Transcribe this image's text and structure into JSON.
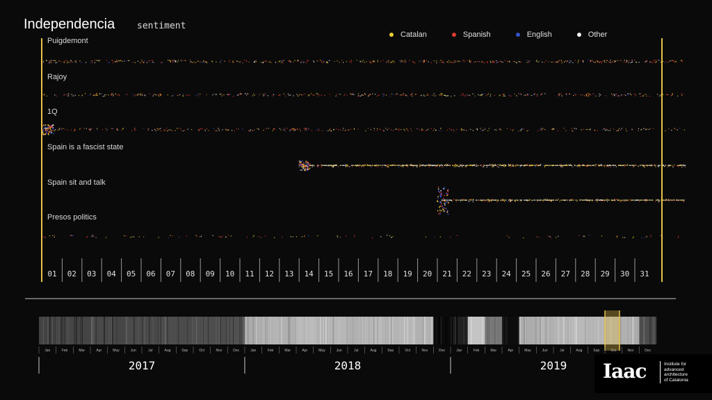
{
  "title": "Independencia",
  "subtitle": "sentiment",
  "colors": {
    "Catalan": "#e9cd36",
    "Spanish": "#e03a32",
    "English": "#3552c8",
    "Other": "#f2f2f2",
    "accent": "#e9c34a"
  },
  "chart_data": {
    "type": "scatter",
    "legend": [
      {
        "name": "Catalan",
        "color": "#e9cd36"
      },
      {
        "name": "Spanish",
        "color": "#e03a32"
      },
      {
        "name": "English",
        "color": "#3552c8"
      },
      {
        "name": "Other",
        "color": "#f2f2f2"
      }
    ],
    "rows": [
      {
        "label": "Puigdemont",
        "start_day": 1,
        "density": 0.55,
        "spikes": []
      },
      {
        "label": "Rajoy",
        "start_day": 1,
        "density": 0.45,
        "spikes": []
      },
      {
        "label": "1Q",
        "start_day": 1,
        "density": 0.4,
        "spikes": [
          1
        ]
      },
      {
        "label": "Spain is a fascist state",
        "start_day": 14,
        "density": 0.7,
        "spikes": [
          14
        ]
      },
      {
        "label": "Spain sit and talk",
        "start_day": 21,
        "density": 0.45,
        "spikes": [
          21
        ]
      },
      {
        "label": "Presos politics",
        "start_day": 1,
        "density": 0.12,
        "spikes": []
      }
    ],
    "days": [
      "01",
      "02",
      "03",
      "04",
      "05",
      "06",
      "07",
      "08",
      "09",
      "10",
      "11",
      "12",
      "13",
      "14",
      "15",
      "16",
      "17",
      "18",
      "19",
      "20",
      "21",
      "22",
      "23",
      "24",
      "25",
      "26",
      "27",
      "28",
      "29",
      "30",
      "31"
    ],
    "timeline": {
      "years": [
        "2017",
        "2018",
        "2019"
      ],
      "months": [
        "Jan",
        "Feb",
        "Mar",
        "Apr",
        "May",
        "Jun",
        "Jul",
        "Aug",
        "Sep",
        "Oct",
        "Nov",
        "Dec"
      ],
      "highlight_year": "2019",
      "highlight_month": "Oct",
      "brightness": [
        0.3,
        0.32,
        0.31,
        0.33,
        0.32,
        0.34,
        0.33,
        0.35,
        0.34,
        0.36,
        0.35,
        0.37,
        0.78,
        0.82,
        0.8,
        0.84,
        0.81,
        0.83,
        0.8,
        0.85,
        0.82,
        0.83,
        0.8,
        0.05,
        0.15,
        0.88,
        0.55,
        0.06,
        0.78,
        0.8,
        0.82,
        0.84,
        0.83,
        0.78,
        0.8,
        0.35
      ]
    }
  }
}
